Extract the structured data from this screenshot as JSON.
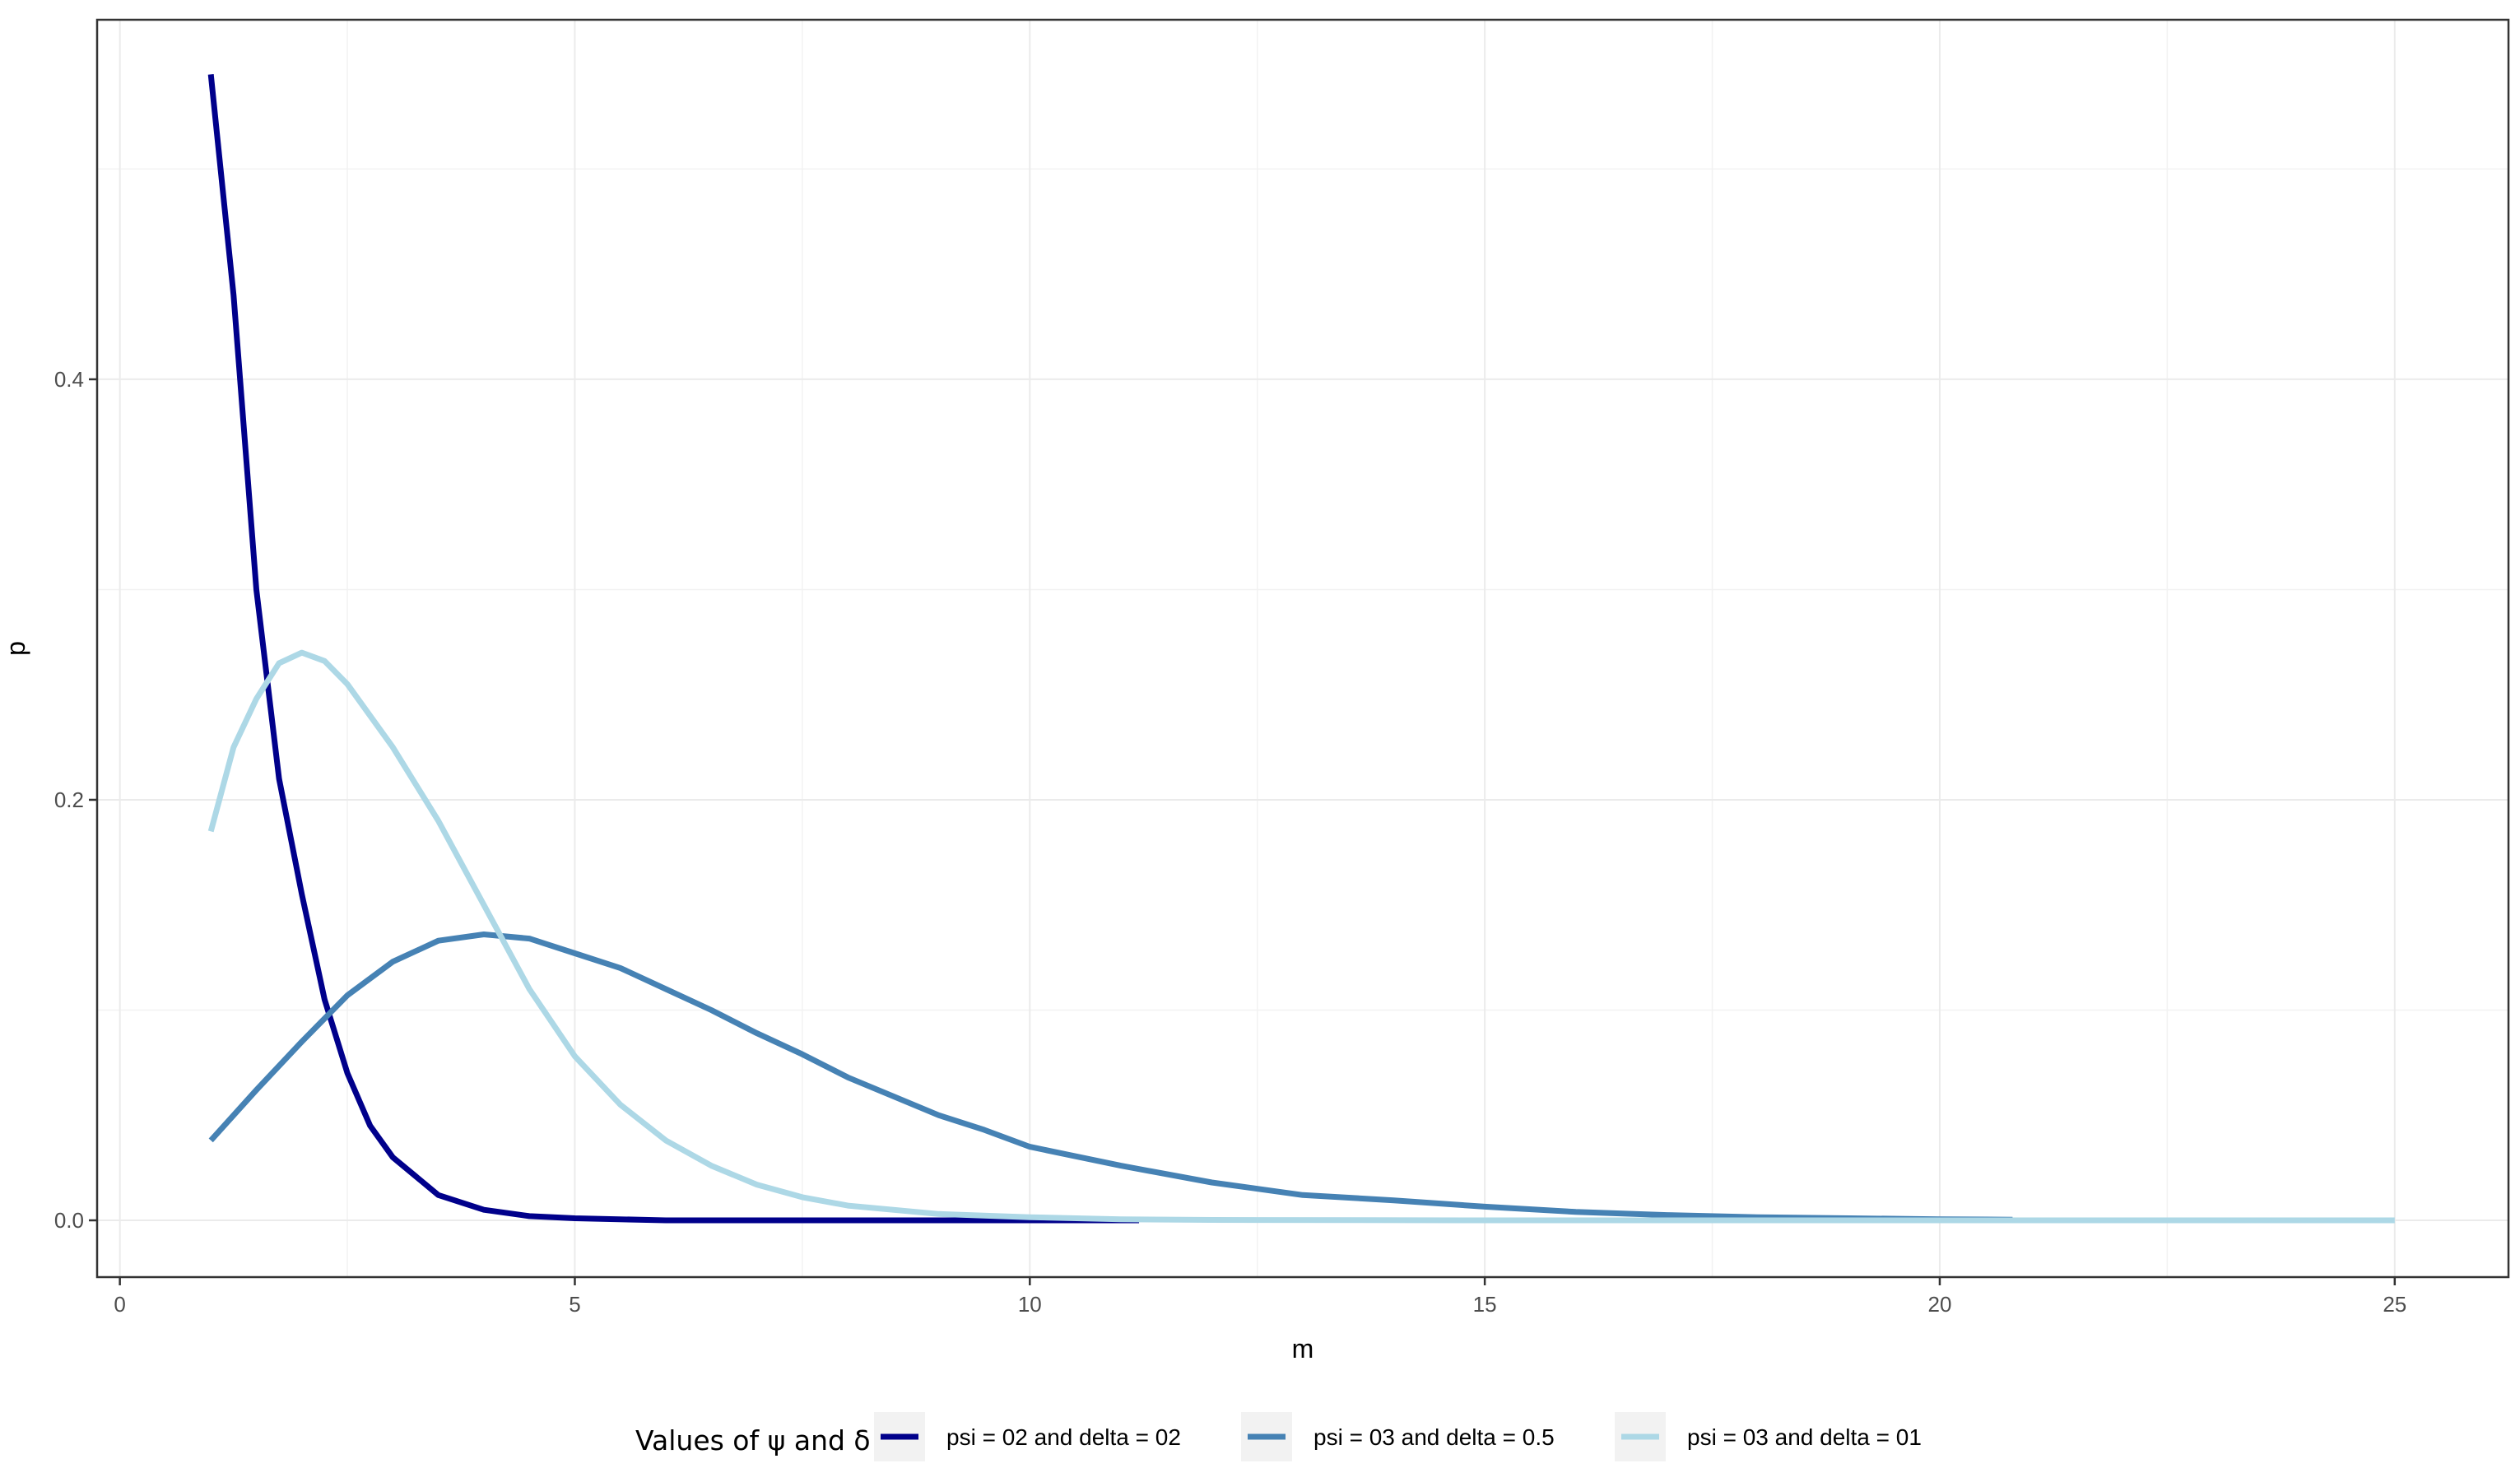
{
  "chart_data": {
    "type": "line",
    "xlabel": "m",
    "ylabel": "p",
    "xlim": [
      -0.25,
      26.25
    ],
    "ylim": [
      -0.027,
      0.571
    ],
    "x_major_ticks": [
      0,
      5,
      10,
      15,
      20,
      25
    ],
    "x_minor_ticks": [
      2.5,
      7.5,
      12.5,
      17.5,
      22.5
    ],
    "y_major_ticks": [
      0.0,
      0.2,
      0.4
    ],
    "y_minor_ticks": [
      0.1,
      0.3,
      0.5
    ],
    "x_tick_labels": [
      "0",
      "5",
      "10",
      "15",
      "20",
      "25"
    ],
    "y_tick_labels": [
      "0.0",
      "0.2",
      "0.4"
    ],
    "grid": true,
    "legend_position": "bottom",
    "legend_title": "Values of ψ and δ",
    "series": [
      {
        "name": "psi = 02 and delta = 02",
        "color": "#00008B",
        "points": [
          [
            1,
            0.545
          ],
          [
            1.25,
            0.44
          ],
          [
            1.5,
            0.3
          ],
          [
            1.75,
            0.21
          ],
          [
            2,
            0.155
          ],
          [
            2.25,
            0.105
          ],
          [
            2.5,
            0.07
          ],
          [
            2.75,
            0.045
          ],
          [
            3,
            0.03
          ],
          [
            3.5,
            0.012
          ],
          [
            4,
            0.005
          ],
          [
            4.5,
            0.002
          ],
          [
            5,
            0.001
          ],
          [
            6,
            0.0
          ],
          [
            8,
            0.0
          ],
          [
            10,
            0.0
          ],
          [
            11.2,
            0.0
          ]
        ]
      },
      {
        "name": "psi = 03 and delta = 0.5",
        "color": "#4682B4",
        "points": [
          [
            1,
            0.038
          ],
          [
            1.5,
            0.062
          ],
          [
            2,
            0.085
          ],
          [
            2.5,
            0.107
          ],
          [
            3,
            0.123
          ],
          [
            3.5,
            0.133
          ],
          [
            4,
            0.136
          ],
          [
            4.5,
            0.134
          ],
          [
            5,
            0.127
          ],
          [
            5.5,
            0.12
          ],
          [
            6,
            0.11
          ],
          [
            6.5,
            0.1
          ],
          [
            7,
            0.089
          ],
          [
            7.5,
            0.079
          ],
          [
            8,
            0.068
          ],
          [
            8.5,
            0.059
          ],
          [
            9,
            0.05
          ],
          [
            9.5,
            0.043
          ],
          [
            10,
            0.035
          ],
          [
            11,
            0.026
          ],
          [
            12,
            0.018
          ],
          [
            13,
            0.012
          ],
          [
            14,
            0.0095
          ],
          [
            15,
            0.0065
          ],
          [
            16,
            0.004
          ],
          [
            17,
            0.0025
          ],
          [
            18,
            0.0015
          ],
          [
            19,
            0.001
          ],
          [
            20,
            0.0005
          ],
          [
            20.8,
            0.0003
          ]
        ]
      },
      {
        "name": "psi = 03 and delta = 01",
        "color": "#ADD8E6",
        "points": [
          [
            1,
            0.185
          ],
          [
            1.25,
            0.225
          ],
          [
            1.5,
            0.248
          ],
          [
            1.75,
            0.265
          ],
          [
            2,
            0.27
          ],
          [
            2.25,
            0.266
          ],
          [
            2.5,
            0.255
          ],
          [
            3,
            0.225
          ],
          [
            3.5,
            0.19
          ],
          [
            4,
            0.15
          ],
          [
            4.5,
            0.11
          ],
          [
            5,
            0.078
          ],
          [
            5.5,
            0.055
          ],
          [
            6,
            0.038
          ],
          [
            6.5,
            0.026
          ],
          [
            7,
            0.017
          ],
          [
            7.5,
            0.011
          ],
          [
            8,
            0.007
          ],
          [
            9,
            0.003
          ],
          [
            10,
            0.0015
          ],
          [
            11,
            0.0005
          ],
          [
            12,
            0.0002
          ],
          [
            15,
            0.0
          ],
          [
            20,
            0.0
          ],
          [
            25,
            0.0
          ]
        ]
      }
    ]
  }
}
